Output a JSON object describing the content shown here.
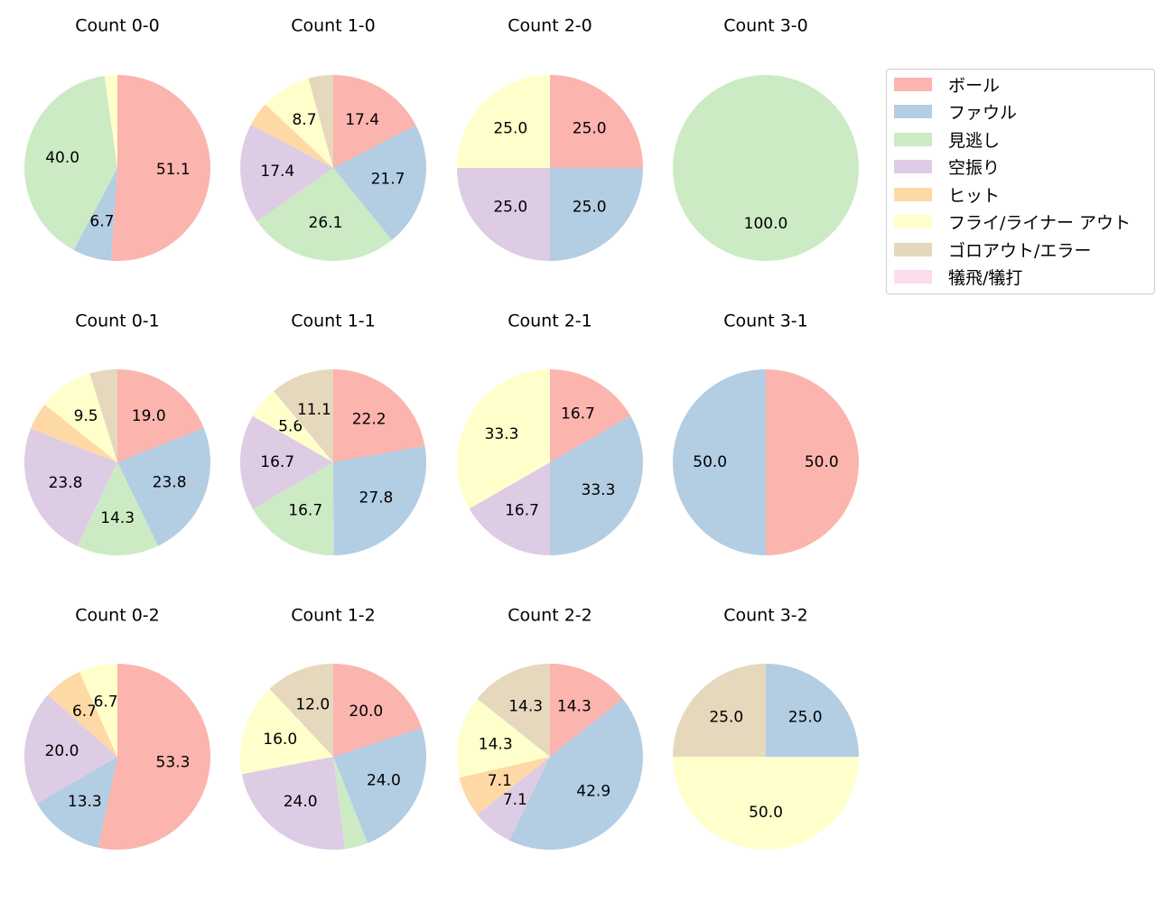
{
  "chart_data": {
    "type": "pie",
    "layout": {
      "rows": 3,
      "cols": 4,
      "start_angle": 90,
      "direction": "clockwise",
      "label_format": "%.1f",
      "labels_hidden_below": 5
    },
    "categories": [
      "ボール",
      "ファウル",
      "見逃し",
      "空振り",
      "ヒット",
      "フライ/ライナー アウト",
      "ゴロアウト/エラー",
      "犠飛/犠打"
    ],
    "colors": [
      "#fbb4ae",
      "#b3cde3",
      "#ccebc5",
      "#decbe4",
      "#fed9a6",
      "#ffffcc",
      "#e5d8bd",
      "#fddaec"
    ],
    "charts": [
      {
        "title": "Count 0-0",
        "values": [
          51.1,
          6.7,
          40.0,
          0,
          0,
          2.2,
          0,
          0
        ]
      },
      {
        "title": "Count 1-0",
        "values": [
          17.4,
          21.7,
          26.1,
          17.4,
          4.3,
          8.7,
          4.3,
          0
        ]
      },
      {
        "title": "Count 2-0",
        "values": [
          25.0,
          25.0,
          0,
          25.0,
          0,
          25.0,
          0,
          0
        ]
      },
      {
        "title": "Count 3-0",
        "values": [
          0,
          0,
          100.0,
          0,
          0,
          0,
          0,
          0
        ]
      },
      {
        "title": "Count 0-1",
        "values": [
          19.0,
          23.8,
          14.3,
          23.8,
          4.8,
          9.5,
          4.8,
          0
        ]
      },
      {
        "title": "Count 1-1",
        "values": [
          22.2,
          27.8,
          16.7,
          16.7,
          0,
          5.6,
          11.1,
          0
        ]
      },
      {
        "title": "Count 2-1",
        "values": [
          16.7,
          33.3,
          0,
          16.7,
          0,
          33.3,
          0,
          0
        ]
      },
      {
        "title": "Count 3-1",
        "values": [
          50.0,
          50.0,
          0,
          0,
          0,
          0,
          0,
          0
        ]
      },
      {
        "title": "Count 0-2",
        "values": [
          53.3,
          13.3,
          0,
          20.0,
          6.7,
          6.7,
          0,
          0
        ]
      },
      {
        "title": "Count 1-2",
        "values": [
          20.0,
          24.0,
          4.0,
          24.0,
          0,
          16.0,
          12.0,
          0
        ]
      },
      {
        "title": "Count 2-2",
        "values": [
          14.3,
          42.9,
          0,
          7.1,
          7.1,
          14.3,
          14.3,
          0
        ]
      },
      {
        "title": "Count 3-2",
        "values": [
          0,
          25.0,
          0,
          0,
          0,
          50.0,
          25.0,
          0
        ]
      }
    ]
  },
  "legend": {
    "items": [
      {
        "label": "ボール",
        "color": "#fbb4ae"
      },
      {
        "label": "ファウル",
        "color": "#b3cde3"
      },
      {
        "label": "見逃し",
        "color": "#ccebc5"
      },
      {
        "label": "空振り",
        "color": "#decbe4"
      },
      {
        "label": "ヒット",
        "color": "#fed9a6"
      },
      {
        "label": "フライ/ライナー アウト",
        "color": "#ffffcc"
      },
      {
        "label": "ゴロアウト/エラー",
        "color": "#e5d8bd"
      },
      {
        "label": "犠飛/犠打",
        "color": "#fddaec"
      }
    ]
  }
}
